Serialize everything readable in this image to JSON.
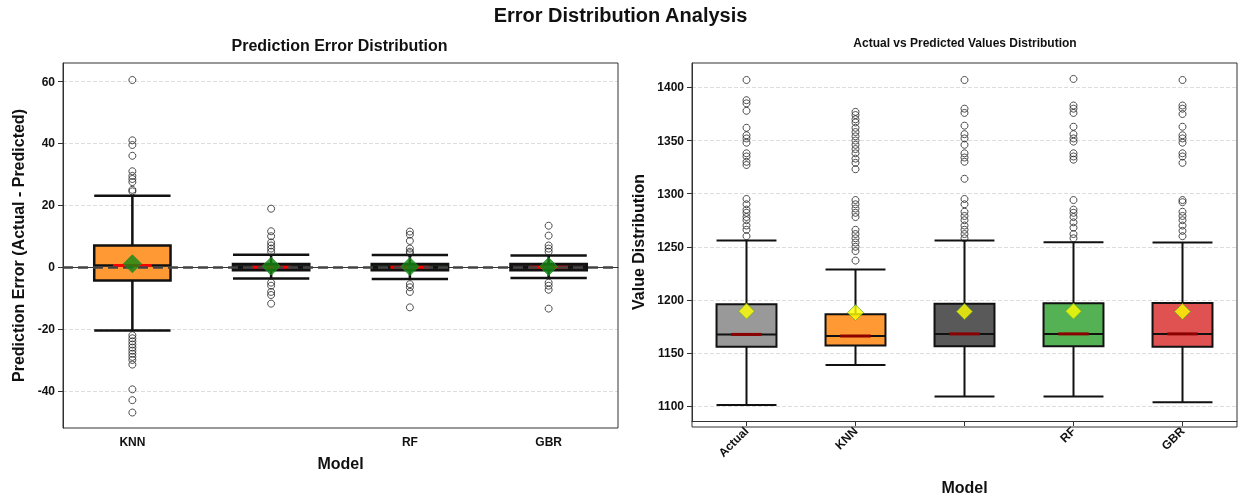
{
  "chart_data": [
    {
      "type": "box",
      "title": "Prediction Error Distribution",
      "annotations": [
        "Error Distribution Analysis"
      ],
      "xlabel": "Model",
      "ylabel": "Prediction Error (Actual - Predicted)",
      "categories": [
        "KNN",
        null,
        "RF",
        "GBR"
      ],
      "colors": [
        "#ff9933",
        "#222222",
        "#1c2a1c",
        "#2a1c1c"
      ],
      "boxes": [
        {
          "low": -20.5,
          "q1": -4.3,
          "median": 0.5,
          "q3": 7,
          "high": 23.1,
          "mean": 1.1,
          "outliers": [
            60.5,
            41,
            39.5,
            36,
            31,
            29.5,
            28.5,
            27.5,
            25,
            24.5,
            -22,
            -23,
            -24,
            -25,
            -26,
            -27,
            -28,
            -29,
            -30,
            -31.5,
            -39.5,
            -43,
            -47
          ]
        },
        {
          "low": -3.7,
          "q1": -1,
          "median": 0,
          "q3": 1,
          "high": 4,
          "mean": 0.3,
          "outliers": [
            18.9,
            11.6,
            10,
            8,
            7,
            6,
            5,
            -5,
            -6,
            -8,
            -9,
            -11.8
          ]
        },
        {
          "low": -3.8,
          "q1": -1,
          "median": 0,
          "q3": 1,
          "high": 3.9,
          "mean": 0.2,
          "outliers": [
            11.5,
            10.5,
            8.5,
            6,
            5,
            4.5,
            -5.5,
            -6.5,
            -8,
            -13
          ]
        },
        {
          "low": -3.5,
          "q1": -1,
          "median": 0,
          "q3": 1,
          "high": 3.8,
          "mean": 0.2,
          "outliers": [
            13.4,
            10.2,
            7,
            6,
            5,
            -5,
            -6,
            -7.3,
            -13.4
          ]
        }
      ],
      "ylim": [
        -52,
        66
      ],
      "yticks": [
        -40,
        -20,
        0,
        20,
        40,
        60
      ],
      "grid": "y",
      "marker": "diamond",
      "ref_lines": [
        {
          "axis": "y",
          "value": 0,
          "label": null,
          "color": "#444444",
          "line_style": "dashed"
        }
      ]
    },
    {
      "type": "box",
      "title": "Actual vs Predicted Values Distribution",
      "xlabel": "Model",
      "ylabel": "Value Distribution",
      "categories": [
        "Actual",
        "KNN",
        null,
        "RF",
        "GBR"
      ],
      "colors": [
        "#999999",
        "#ff9933",
        "#595959",
        "#55b254",
        "#e05252"
      ],
      "boxes": [
        {
          "low": 1101,
          "q1": 1156,
          "median": 1167.5,
          "q3": 1196,
          "high": 1255.8,
          "mean": 1189.4,
          "outliers": [
            1407,
            1388,
            1385,
            1378,
            1362,
            1355,
            1352,
            1348,
            1338,
            1335,
            1330,
            1327,
            1295,
            1290,
            1285,
            1282,
            1278,
            1275,
            1270,
            1266,
            1260
          ]
        },
        {
          "low": 1138.6,
          "q1": 1157,
          "median": 1166,
          "q3": 1186.5,
          "high": 1228.7,
          "mean": 1188,
          "outliers": [
            1377,
            1374,
            1370,
            1367,
            1362,
            1358,
            1354,
            1350,
            1346,
            1342,
            1338,
            1333,
            1329,
            1323,
            1294,
            1290,
            1286,
            1282,
            1278,
            1266,
            1262,
            1258,
            1254,
            1250,
            1246,
            1237
          ]
        },
        {
          "low": 1109,
          "q1": 1156.4,
          "median": 1168,
          "q3": 1196.4,
          "high": 1256,
          "mean": 1189,
          "outliers": [
            1407,
            1380,
            1376,
            1364,
            1356,
            1352,
            1346,
            1338,
            1334,
            1330,
            1314,
            1295,
            1290,
            1283,
            1279,
            1275,
            1270,
            1266,
            1262,
            1258
          ]
        },
        {
          "low": 1109,
          "q1": 1156.4,
          "median": 1168,
          "q3": 1196.8,
          "high": 1254.3,
          "mean": 1189.4,
          "outliers": [
            1408,
            1383,
            1380,
            1376,
            1363,
            1356,
            1352,
            1349,
            1338,
            1335,
            1332,
            1294,
            1285,
            1282,
            1278,
            1273,
            1268,
            1262,
            1258
          ]
        },
        {
          "low": 1103.7,
          "q1": 1156,
          "median": 1168,
          "q3": 1197,
          "high": 1254,
          "mean": 1189,
          "outliers": [
            1407,
            1383,
            1380,
            1375,
            1363,
            1355,
            1352,
            1348,
            1338,
            1335,
            1329,
            1294,
            1292,
            1283,
            1279,
            1275,
            1270,
            1265,
            1260
          ]
        }
      ],
      "ylim": [
        1086,
        1423
      ],
      "yticks": [
        1100,
        1150,
        1200,
        1250,
        1300,
        1350,
        1400
      ],
      "grid": "y",
      "marker": "diamond"
    }
  ]
}
